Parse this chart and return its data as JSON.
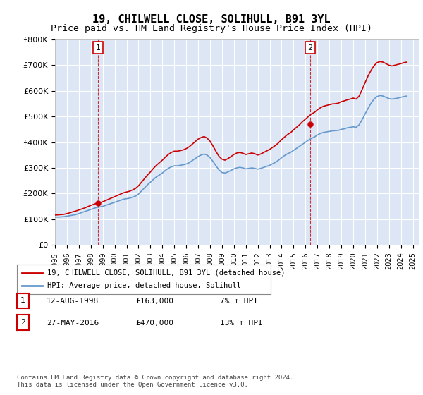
{
  "title": "19, CHILWELL CLOSE, SOLIHULL, B91 3YL",
  "subtitle": "Price paid vs. HM Land Registry's House Price Index (HPI)",
  "title_fontsize": 11,
  "subtitle_fontsize": 9.5,
  "bg_color": "#e8eef8",
  "plot_bg_color": "#dce6f5",
  "ylim": [
    0,
    800000
  ],
  "yticks": [
    0,
    100000,
    200000,
    300000,
    400000,
    500000,
    600000,
    700000,
    800000
  ],
  "ytick_labels": [
    "£0",
    "£100K",
    "£200K",
    "£300K",
    "£400K",
    "£500K",
    "£600K",
    "£700K",
    "£800K"
  ],
  "xlim_start": 1995.0,
  "xlim_end": 2025.5,
  "x_years": [
    1995,
    1996,
    1997,
    1998,
    1999,
    2000,
    2001,
    2002,
    2003,
    2004,
    2005,
    2006,
    2007,
    2008,
    2009,
    2010,
    2011,
    2012,
    2013,
    2014,
    2015,
    2016,
    2017,
    2018,
    2019,
    2020,
    2021,
    2022,
    2023,
    2024,
    2025
  ],
  "transaction1_date": 1998.62,
  "transaction1_price": 163000,
  "transaction1_label": "1",
  "transaction1_table": "12-AUG-1998",
  "transaction1_amount": "£163,000",
  "transaction1_hpi": "7% ↑ HPI",
  "transaction2_date": 2016.4,
  "transaction2_price": 470000,
  "transaction2_label": "2",
  "transaction2_table": "27-MAY-2016",
  "transaction2_amount": "£470,000",
  "transaction2_hpi": "13% ↑ HPI",
  "red_line_color": "#cc0000",
  "blue_line_color": "#6699cc",
  "marker_box_color": "#cc0000",
  "vline_color": "#cc0000",
  "footer_text": "Contains HM Land Registry data © Crown copyright and database right 2024.\nThis data is licensed under the Open Government Licence v3.0.",
  "legend_label1": "19, CHILWELL CLOSE, SOLIHULL, B91 3YL (detached house)",
  "legend_label2": "HPI: Average price, detached house, Solihull",
  "hpi_data_x": [
    1995.0,
    1995.25,
    1995.5,
    1995.75,
    1996.0,
    1996.25,
    1996.5,
    1996.75,
    1997.0,
    1997.25,
    1997.5,
    1997.75,
    1998.0,
    1998.25,
    1998.5,
    1998.75,
    1999.0,
    1999.25,
    1999.5,
    1999.75,
    2000.0,
    2000.25,
    2000.5,
    2000.75,
    2001.0,
    2001.25,
    2001.5,
    2001.75,
    2002.0,
    2002.25,
    2002.5,
    2002.75,
    2003.0,
    2003.25,
    2003.5,
    2003.75,
    2004.0,
    2004.25,
    2004.5,
    2004.75,
    2005.0,
    2005.25,
    2005.5,
    2005.75,
    2006.0,
    2006.25,
    2006.5,
    2006.75,
    2007.0,
    2007.25,
    2007.5,
    2007.75,
    2008.0,
    2008.25,
    2008.5,
    2008.75,
    2009.0,
    2009.25,
    2009.5,
    2009.75,
    2010.0,
    2010.25,
    2010.5,
    2010.75,
    2011.0,
    2011.25,
    2011.5,
    2011.75,
    2012.0,
    2012.25,
    2012.5,
    2012.75,
    2013.0,
    2013.25,
    2013.5,
    2013.75,
    2014.0,
    2014.25,
    2014.5,
    2014.75,
    2015.0,
    2015.25,
    2015.5,
    2015.75,
    2016.0,
    2016.25,
    2016.5,
    2016.75,
    2017.0,
    2017.25,
    2017.5,
    2017.75,
    2018.0,
    2018.25,
    2018.5,
    2018.75,
    2019.0,
    2019.25,
    2019.5,
    2019.75,
    2020.0,
    2020.25,
    2020.5,
    2020.75,
    2021.0,
    2021.25,
    2021.5,
    2021.75,
    2022.0,
    2022.25,
    2022.5,
    2022.75,
    2023.0,
    2023.25,
    2023.5,
    2023.75,
    2024.0,
    2024.25,
    2024.5
  ],
  "hpi_data_y": [
    108000,
    108500,
    109000,
    110000,
    112000,
    114000,
    116000,
    118000,
    122000,
    126000,
    130000,
    134000,
    138000,
    142000,
    146000,
    148000,
    150000,
    154000,
    158000,
    162000,
    166000,
    170000,
    174000,
    178000,
    180000,
    182000,
    186000,
    190000,
    198000,
    210000,
    222000,
    234000,
    244000,
    255000,
    265000,
    272000,
    280000,
    290000,
    298000,
    304000,
    308000,
    308000,
    310000,
    312000,
    315000,
    320000,
    328000,
    336000,
    344000,
    350000,
    354000,
    350000,
    340000,
    325000,
    308000,
    292000,
    282000,
    280000,
    284000,
    290000,
    296000,
    300000,
    302000,
    300000,
    296000,
    298000,
    300000,
    298000,
    295000,
    298000,
    302000,
    306000,
    310000,
    316000,
    322000,
    330000,
    340000,
    348000,
    355000,
    360000,
    368000,
    376000,
    384000,
    392000,
    400000,
    408000,
    415000,
    420000,
    428000,
    434000,
    438000,
    440000,
    442000,
    444000,
    445000,
    446000,
    450000,
    452000,
    456000,
    458000,
    460000,
    458000,
    468000,
    488000,
    510000,
    532000,
    552000,
    568000,
    578000,
    582000,
    580000,
    575000,
    570000,
    568000,
    570000,
    572000,
    575000,
    578000,
    580000
  ],
  "red_data_x": [
    1995.0,
    1995.25,
    1995.5,
    1995.75,
    1996.0,
    1996.25,
    1996.5,
    1996.75,
    1997.0,
    1997.25,
    1997.5,
    1997.75,
    1998.0,
    1998.25,
    1998.5,
    1998.75,
    1999.0,
    1999.25,
    1999.5,
    1999.75,
    2000.0,
    2000.25,
    2000.5,
    2000.75,
    2001.0,
    2001.25,
    2001.5,
    2001.75,
    2002.0,
    2002.25,
    2002.5,
    2002.75,
    2003.0,
    2003.25,
    2003.5,
    2003.75,
    2004.0,
    2004.25,
    2004.5,
    2004.75,
    2005.0,
    2005.25,
    2005.5,
    2005.75,
    2006.0,
    2006.25,
    2006.5,
    2006.75,
    2007.0,
    2007.25,
    2007.5,
    2007.75,
    2008.0,
    2008.25,
    2008.5,
    2008.75,
    2009.0,
    2009.25,
    2009.5,
    2009.75,
    2010.0,
    2010.25,
    2010.5,
    2010.75,
    2011.0,
    2011.25,
    2011.5,
    2011.75,
    2012.0,
    2012.25,
    2012.5,
    2012.75,
    2013.0,
    2013.25,
    2013.5,
    2013.75,
    2014.0,
    2014.25,
    2014.5,
    2014.75,
    2015.0,
    2015.25,
    2015.5,
    2015.75,
    2016.0,
    2016.25,
    2016.5,
    2016.75,
    2017.0,
    2017.25,
    2017.5,
    2017.75,
    2018.0,
    2018.25,
    2018.5,
    2018.75,
    2019.0,
    2019.25,
    2019.5,
    2019.75,
    2020.0,
    2020.25,
    2020.5,
    2020.75,
    2021.0,
    2021.25,
    2021.5,
    2021.75,
    2022.0,
    2022.25,
    2022.5,
    2022.75,
    2023.0,
    2023.25,
    2023.5,
    2023.75,
    2024.0,
    2024.25,
    2024.5
  ],
  "red_data_y": [
    116000,
    117000,
    118000,
    119000,
    122000,
    125000,
    129000,
    132000,
    136000,
    140000,
    144000,
    149000,
    154000,
    158000,
    162000,
    164000,
    168000,
    173000,
    178000,
    183000,
    188000,
    193000,
    198000,
    203000,
    206000,
    209000,
    214000,
    220000,
    230000,
    244000,
    258000,
    272000,
    284000,
    298000,
    310000,
    320000,
    330000,
    342000,
    352000,
    360000,
    365000,
    365000,
    367000,
    370000,
    375000,
    382000,
    392000,
    402000,
    412000,
    418000,
    422000,
    416000,
    404000,
    385000,
    364000,
    345000,
    334000,
    330000,
    336000,
    344000,
    352000,
    358000,
    360000,
    357000,
    352000,
    355000,
    358000,
    355000,
    350000,
    354000,
    360000,
    366000,
    372000,
    380000,
    388000,
    398000,
    410000,
    420000,
    430000,
    437000,
    448000,
    458000,
    468000,
    480000,
    490000,
    500000,
    510000,
    516000,
    526000,
    534000,
    540000,
    543000,
    546000,
    549000,
    550000,
    552000,
    558000,
    561000,
    565000,
    568000,
    572000,
    568000,
    580000,
    605000,
    632000,
    658000,
    680000,
    698000,
    710000,
    714000,
    712000,
    706000,
    700000,
    697000,
    700000,
    703000,
    706000,
    710000,
    712000
  ]
}
